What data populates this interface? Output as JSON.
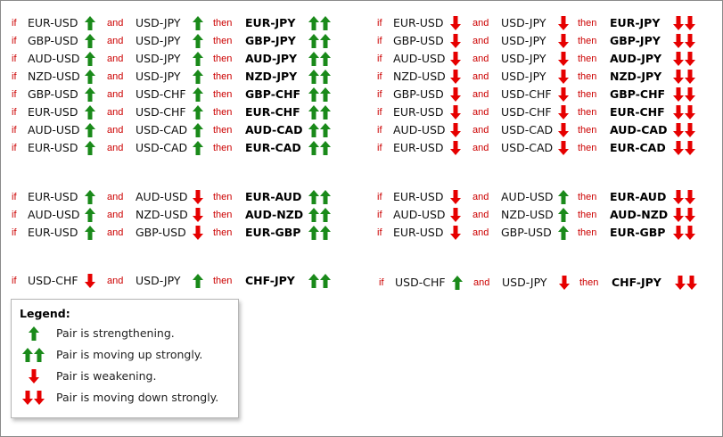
{
  "connectors": {
    "if": "if",
    "and": "and",
    "then": "then"
  },
  "colors": {
    "up": "#1a8a1a",
    "down": "#e60000",
    "keyword": "#cc0000"
  },
  "arrow_icons": {
    "up": "green-up-arrow-icon",
    "strong_up": "green-double-up-arrow-icon",
    "down": "red-down-arrow-icon",
    "strong_down": "red-double-down-arrow-icon"
  },
  "left_rules": [
    {
      "pair1": "EUR-USD",
      "dir1": "up",
      "pair2": "USD-JPY",
      "dir2": "up",
      "result": "EUR-JPY",
      "result_dir": "strong_up"
    },
    {
      "pair1": "GBP-USD",
      "dir1": "up",
      "pair2": "USD-JPY",
      "dir2": "up",
      "result": "GBP-JPY",
      "result_dir": "strong_up"
    },
    {
      "pair1": "AUD-USD",
      "dir1": "up",
      "pair2": "USD-JPY",
      "dir2": "up",
      "result": "AUD-JPY",
      "result_dir": "strong_up"
    },
    {
      "pair1": "NZD-USD",
      "dir1": "up",
      "pair2": "USD-JPY",
      "dir2": "up",
      "result": "NZD-JPY",
      "result_dir": "strong_up"
    },
    {
      "pair1": "GBP-USD",
      "dir1": "up",
      "pair2": "USD-CHF",
      "dir2": "up",
      "result": "GBP-CHF",
      "result_dir": "strong_up"
    },
    {
      "pair1": "EUR-USD",
      "dir1": "up",
      "pair2": "USD-CHF",
      "dir2": "up",
      "result": "EUR-CHF",
      "result_dir": "strong_up"
    },
    {
      "pair1": "AUD-USD",
      "dir1": "up",
      "pair2": "USD-CAD",
      "dir2": "up",
      "result": "AUD-CAD",
      "result_dir": "strong_up"
    },
    {
      "pair1": "EUR-USD",
      "dir1": "up",
      "pair2": "USD-CAD",
      "dir2": "up",
      "result": "EUR-CAD",
      "result_dir": "strong_up"
    },
    {
      "pair1": "EUR-USD",
      "dir1": "up",
      "pair2": "AUD-USD",
      "dir2": "down",
      "result": "EUR-AUD",
      "result_dir": "strong_up"
    },
    {
      "pair1": "AUD-USD",
      "dir1": "up",
      "pair2": "NZD-USD",
      "dir2": "down",
      "result": "AUD-NZD",
      "result_dir": "strong_up"
    },
    {
      "pair1": "EUR-USD",
      "dir1": "up",
      "pair2": "GBP-USD",
      "dir2": "down",
      "result": "EUR-GBP",
      "result_dir": "strong_up"
    },
    {
      "pair1": "USD-CHF",
      "dir1": "down",
      "pair2": "USD-JPY",
      "dir2": "up",
      "result": "CHF-JPY",
      "result_dir": "strong_up"
    }
  ],
  "right_rules": [
    {
      "pair1": "EUR-USD",
      "dir1": "down",
      "pair2": "USD-JPY",
      "dir2": "down",
      "result": "EUR-JPY",
      "result_dir": "strong_down"
    },
    {
      "pair1": "GBP-USD",
      "dir1": "down",
      "pair2": "USD-JPY",
      "dir2": "down",
      "result": "GBP-JPY",
      "result_dir": "strong_down"
    },
    {
      "pair1": "AUD-USD",
      "dir1": "down",
      "pair2": "USD-JPY",
      "dir2": "down",
      "result": "AUD-JPY",
      "result_dir": "strong_down"
    },
    {
      "pair1": "NZD-USD",
      "dir1": "down",
      "pair2": "USD-JPY",
      "dir2": "down",
      "result": "NZD-JPY",
      "result_dir": "strong_down"
    },
    {
      "pair1": "GBP-USD",
      "dir1": "down",
      "pair2": "USD-CHF",
      "dir2": "down",
      "result": "GBP-CHF",
      "result_dir": "strong_down"
    },
    {
      "pair1": "EUR-USD",
      "dir1": "down",
      "pair2": "USD-CHF",
      "dir2": "down",
      "result": "EUR-CHF",
      "result_dir": "strong_down"
    },
    {
      "pair1": "AUD-USD",
      "dir1": "down",
      "pair2": "USD-CAD",
      "dir2": "down",
      "result": "AUD-CAD",
      "result_dir": "strong_down"
    },
    {
      "pair1": "EUR-USD",
      "dir1": "down",
      "pair2": "USD-CAD",
      "dir2": "down",
      "result": "EUR-CAD",
      "result_dir": "strong_down"
    },
    {
      "pair1": "EUR-USD",
      "dir1": "down",
      "pair2": "AUD-USD",
      "dir2": "up",
      "result": "EUR-AUD",
      "result_dir": "strong_down"
    },
    {
      "pair1": "AUD-USD",
      "dir1": "down",
      "pair2": "NZD-USD",
      "dir2": "up",
      "result": "AUD-NZD",
      "result_dir": "strong_down"
    },
    {
      "pair1": "EUR-USD",
      "dir1": "down",
      "pair2": "GBP-USD",
      "dir2": "up",
      "result": "EUR-GBP",
      "result_dir": "strong_down"
    },
    {
      "pair1": "USD-CHF",
      "dir1": "up",
      "pair2": "USD-JPY",
      "dir2": "down",
      "result": "CHF-JPY",
      "result_dir": "strong_down"
    }
  ],
  "legend": {
    "title": "Legend:",
    "items": [
      {
        "icon": "up",
        "text": "Pair is strengthening."
      },
      {
        "icon": "strong_up",
        "text": "Pair is moving up strongly."
      },
      {
        "icon": "down",
        "text": "Pair is weakening."
      },
      {
        "icon": "strong_down",
        "text": "Pair is moving down strongly."
      }
    ]
  }
}
